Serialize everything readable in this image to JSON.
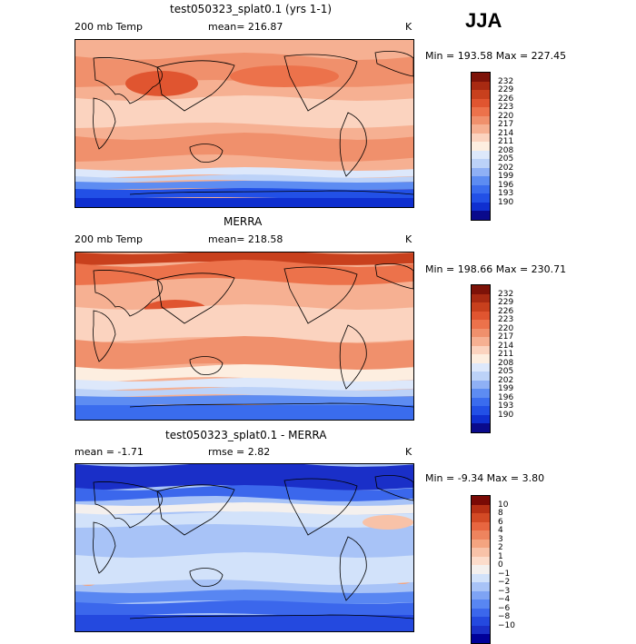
{
  "season": "JJA",
  "colors": {
    "temp_scale": [
      "#0a0a8c",
      "#0f2fd0",
      "#2250e6",
      "#3a6cee",
      "#5d8cf2",
      "#8fb0f5",
      "#bcd2f8",
      "#dde8fb",
      "#fdeee0",
      "#fbd3bf",
      "#f6b092",
      "#f0906c",
      "#ec724b",
      "#e05530",
      "#c8401d",
      "#a82a12",
      "#7d1208"
    ],
    "diff_scale": [
      "#000099",
      "#1a2fc8",
      "#2449df",
      "#3b67ec",
      "#5886f2",
      "#7ea3f4",
      "#a8c3f7",
      "#d2e2fa",
      "#f4f0ee",
      "#fcdccb",
      "#f8c2a8",
      "#f4a480",
      "#ee845e",
      "#e86640",
      "#d34a25",
      "#b62f14",
      "#7a0a05"
    ],
    "land_outline": "#000000"
  },
  "panels": [
    {
      "id": "model",
      "title": "test050323_splat0.1 (yrs 1-1)",
      "left_label": "200 mb Temp",
      "stat_label": "mean= 216.87",
      "units": "K",
      "minmax": "Min = 193.58 Max = 227.45",
      "colorbar_ticks": [
        "232",
        "229",
        "226",
        "223",
        "220",
        "217",
        "214",
        "211",
        "208",
        "205",
        "202",
        "199",
        "196",
        "193",
        "190"
      ]
    },
    {
      "id": "obs",
      "title": "MERRA",
      "left_label": "200 mb Temp",
      "stat_label": "mean= 218.58",
      "units": "K",
      "minmax": "Min = 198.66 Max = 230.71",
      "colorbar_ticks": [
        "232",
        "229",
        "226",
        "223",
        "220",
        "217",
        "214",
        "211",
        "208",
        "205",
        "202",
        "199",
        "196",
        "193",
        "190"
      ]
    },
    {
      "id": "diff",
      "title": "test050323_splat0.1 - MERRA",
      "left_label": "mean =  -1.71",
      "stat_label": "rmse =   2.82",
      "units": "K",
      "minmax": "Min =  -9.34 Max =   3.80",
      "colorbar_ticks": [
        "10",
        "8",
        "6",
        "4",
        "3",
        "2",
        "1",
        "0",
        "−1",
        "−2",
        "−3",
        "−4",
        "−6",
        "−8",
        "−10"
      ]
    }
  ],
  "chart_data": [
    {
      "type": "heatmap",
      "title": "test050323_splat0.1 (yrs 1-1)",
      "variable": "200 mb Temp",
      "units": "K",
      "mean": 216.87,
      "min": 193.58,
      "max": 227.45,
      "levels": [
        190,
        193,
        196,
        199,
        202,
        205,
        208,
        211,
        214,
        217,
        220,
        223,
        226,
        229,
        232
      ]
    },
    {
      "type": "heatmap",
      "title": "MERRA",
      "variable": "200 mb Temp",
      "units": "K",
      "mean": 218.58,
      "min": 198.66,
      "max": 230.71,
      "levels": [
        190,
        193,
        196,
        199,
        202,
        205,
        208,
        211,
        214,
        217,
        220,
        223,
        226,
        229,
        232
      ]
    },
    {
      "type": "heatmap",
      "title": "test050323_splat0.1 - MERRA",
      "units": "K",
      "mean": -1.71,
      "rmse": 2.82,
      "min": -9.34,
      "max": 3.8,
      "levels": [
        -10,
        -8,
        -6,
        -4,
        -3,
        -2,
        -1,
        0,
        1,
        2,
        3,
        4,
        6,
        8,
        10
      ]
    }
  ]
}
